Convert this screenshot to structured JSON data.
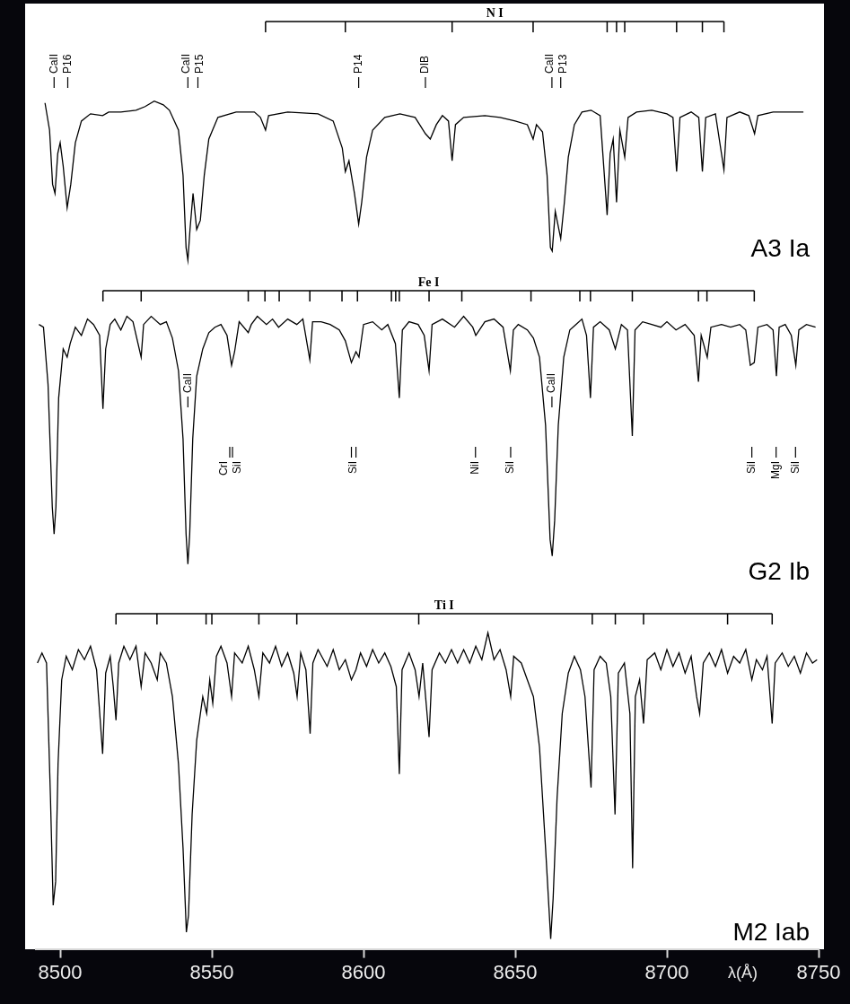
{
  "chart_data": [
    {
      "type": "line",
      "title": "A3 Ia",
      "color": "#000000",
      "grid": false,
      "tick_labels": false,
      "xlim": [
        8492,
        8750
      ],
      "ylim": [
        0.1,
        1.55
      ],
      "x": [
        8495,
        8496.5,
        8497.5,
        8498.3,
        8499.2,
        8500,
        8501,
        8502.3,
        8503.5,
        8505,
        8507,
        8510,
        8514,
        8516,
        8520,
        8525,
        8528,
        8531,
        8534,
        8536,
        8539,
        8540.5,
        8541.5,
        8542.1,
        8542.8,
        8543.8,
        8545.0,
        8546.2,
        8547.5,
        8549,
        8552,
        8558,
        8564,
        8566,
        8567.7,
        8568.7,
        8575,
        8585,
        8590,
        8593,
        8594.0,
        8595.2,
        8597,
        8598.4,
        8599.4,
        8601,
        8603,
        8607,
        8612,
        8617,
        8620.4,
        8622,
        8624,
        8626,
        8628,
        8629.2,
        8630.3,
        8633,
        8640,
        8645,
        8650,
        8654,
        8655.9,
        8657,
        8659,
        8660.5,
        8661.6,
        8662.2,
        8663.2,
        8665.0,
        8666.2,
        8667.5,
        8669.5,
        8672,
        8675,
        8678,
        8680.3,
        8681.3,
        8682.3,
        8683.4,
        8684.5,
        8686.1,
        8687.2,
        8690,
        8695,
        8700,
        8702,
        8703.2,
        8704.3,
        8708,
        8710.5,
        8711.7,
        8712.8,
        8716,
        8718.8,
        8719.8,
        8724,
        8727,
        8728.9,
        8730,
        8735,
        8740,
        8745
      ],
      "values": [
        1.0,
        0.85,
        0.55,
        0.5,
        0.72,
        0.78,
        0.65,
        0.42,
        0.55,
        0.78,
        0.9,
        0.94,
        0.93,
        0.95,
        0.95,
        0.96,
        0.98,
        1.01,
        0.99,
        0.96,
        0.85,
        0.6,
        0.2,
        0.13,
        0.3,
        0.5,
        0.3,
        0.35,
        0.6,
        0.8,
        0.92,
        0.95,
        0.95,
        0.92,
        0.85,
        0.93,
        0.95,
        0.94,
        0.9,
        0.75,
        0.62,
        0.68,
        0.5,
        0.33,
        0.45,
        0.7,
        0.85,
        0.92,
        0.94,
        0.92,
        0.83,
        0.8,
        0.88,
        0.93,
        0.9,
        0.68,
        0.88,
        0.92,
        0.93,
        0.92,
        0.9,
        0.88,
        0.8,
        0.88,
        0.84,
        0.6,
        0.2,
        0.18,
        0.4,
        0.25,
        0.45,
        0.7,
        0.88,
        0.95,
        0.96,
        0.93,
        0.38,
        0.72,
        0.8,
        0.45,
        0.85,
        0.7,
        0.92,
        0.95,
        0.96,
        0.94,
        0.92,
        0.62,
        0.92,
        0.95,
        0.92,
        0.62,
        0.92,
        0.94,
        0.63,
        0.92,
        0.95,
        0.93,
        0.83,
        0.93,
        0.95,
        0.95,
        0.95
      ],
      "line_lists": [
        {
          "label": "N I",
          "x": [
            8567.7,
            8594.0,
            8629.2,
            8655.9,
            8680.3,
            8683.4,
            8686.1,
            8703.2,
            8711.7,
            8718.8
          ]
        }
      ],
      "line_ids": [
        {
          "label": "CaII",
          "x": [
            8498.0
          ]
        },
        {
          "label": "P16",
          "x": [
            8502.5
          ]
        },
        {
          "label": "CaII",
          "x": [
            8542.1
          ]
        },
        {
          "label": "P15",
          "x": [
            8545.4
          ]
        },
        {
          "label": "P14",
          "x": [
            8598.4
          ]
        },
        {
          "label": "DIB",
          "x": [
            8620.4
          ]
        },
        {
          "label": "CaII",
          "x": [
            8662.1
          ]
        },
        {
          "label": "P13",
          "x": [
            8665.0
          ]
        }
      ]
    },
    {
      "type": "line",
      "title": "G2 Ib",
      "color": "#000000",
      "grid": false,
      "tick_labels": false,
      "xlim": [
        8492,
        8750
      ],
      "ylim": [
        0,
        1.16
      ],
      "x": [
        8493,
        8494.5,
        8496,
        8497.4,
        8498.0,
        8498.6,
        8499.5,
        8501,
        8502.3,
        8503.3,
        8505,
        8507,
        8509,
        8511,
        8513,
        8514.1,
        8515,
        8516.5,
        8518,
        8520,
        8522,
        8524,
        8526.7,
        8527.5,
        8530,
        8533,
        8535,
        8537,
        8539,
        8540.5,
        8541.5,
        8542.1,
        8542.7,
        8543.7,
        8545,
        8547,
        8549,
        8551,
        8553,
        8555,
        8556.5,
        8557.5,
        8559,
        8562,
        8563,
        8565,
        8568,
        8570,
        8572,
        8575,
        8578,
        8580,
        8582.3,
        8583.2,
        8586,
        8589,
        8592,
        8594,
        8596,
        8597.5,
        8598.5,
        8600,
        8603,
        8606,
        8608,
        8610.5,
        8611.8,
        8612.8,
        8615,
        8618,
        8620,
        8621.6,
        8622.6,
        8626,
        8630,
        8633,
        8636,
        8637,
        8640,
        8643,
        8646,
        8648.4,
        8649.4,
        8651,
        8654,
        8656,
        8658,
        8660,
        8661.5,
        8662.2,
        8663,
        8664.2,
        8666,
        8668,
        8670,
        8672,
        8673.5,
        8674.8,
        8675.8,
        8678,
        8681,
        8683,
        8685,
        8687,
        8688.6,
        8689.5,
        8692,
        8695,
        8698,
        8700,
        8703,
        8706,
        8709,
        8710.4,
        8711.3,
        8713.3,
        8714.5,
        8718,
        8721,
        8724,
        8726,
        8727.5,
        8728.8,
        8730,
        8733,
        8735,
        8736.1,
        8737,
        8739,
        8741,
        8742.5,
        8743.5,
        8746,
        8749
      ],
      "values": [
        0.97,
        0.96,
        0.75,
        0.3,
        0.2,
        0.3,
        0.7,
        0.88,
        0.85,
        0.9,
        0.96,
        0.93,
        0.99,
        0.97,
        0.93,
        0.66,
        0.88,
        0.97,
        0.99,
        0.95,
        1.0,
        0.98,
        0.85,
        0.97,
        1.0,
        0.97,
        0.98,
        0.92,
        0.8,
        0.55,
        0.2,
        0.09,
        0.2,
        0.55,
        0.78,
        0.88,
        0.94,
        0.96,
        0.97,
        0.93,
        0.82,
        0.87,
        0.98,
        0.94,
        0.97,
        1.0,
        0.97,
        0.99,
        0.96,
        0.99,
        0.97,
        0.99,
        0.84,
        0.98,
        0.98,
        0.97,
        0.95,
        0.91,
        0.83,
        0.87,
        0.85,
        0.97,
        0.98,
        0.95,
        0.97,
        0.9,
        0.7,
        0.95,
        0.98,
        0.97,
        0.93,
        0.8,
        0.97,
        0.99,
        0.96,
        1.0,
        0.96,
        0.93,
        0.98,
        0.99,
        0.96,
        0.8,
        0.95,
        0.97,
        0.95,
        0.92,
        0.85,
        0.6,
        0.18,
        0.12,
        0.25,
        0.6,
        0.85,
        0.95,
        0.97,
        0.99,
        0.93,
        0.7,
        0.96,
        0.98,
        0.95,
        0.88,
        0.97,
        0.95,
        0.56,
        0.95,
        0.98,
        0.97,
        0.96,
        0.98,
        0.95,
        0.97,
        0.93,
        0.76,
        0.93,
        0.85,
        0.96,
        0.97,
        0.96,
        0.97,
        0.95,
        0.82,
        0.83,
        0.96,
        0.97,
        0.95,
        0.78,
        0.96,
        0.97,
        0.93,
        0.82,
        0.95,
        0.97,
        0.96
      ],
      "line_lists": [
        {
          "label": "Fe I",
          "x": [
            8514.1,
            8526.7,
            8562.0,
            8567.5,
            8572.2,
            8582.3,
            8592.9,
            8598.0,
            8609.2,
            8610.6,
            8611.8,
            8621.6,
            8632.4,
            8655.2,
            8671.3,
            8674.8,
            8688.6,
            8710.4,
            8713.2,
            8728.8
          ]
        }
      ],
      "line_ids": [
        {
          "label": "CaII",
          "x": [
            8542.1
          ]
        },
        {
          "label": "CaII",
          "x": [
            8662.1
          ]
        }
      ],
      "lower_line_ids": [
        {
          "label": "CrI",
          "x": [
            8555.9
          ]
        },
        {
          "label": "SiI",
          "x": [
            8556.8
          ]
        },
        {
          "label": "SiI",
          "x": [
            8596.0,
            8597.5
          ]
        },
        {
          "label": "NiI",
          "x": [
            8636.9
          ]
        },
        {
          "label": "SiI",
          "x": [
            8648.5
          ]
        },
        {
          "label": "SiI",
          "x": [
            8728.0
          ]
        },
        {
          "label": "MgI",
          "x": [
            8736.0
          ]
        },
        {
          "label": "SiI",
          "x": [
            8742.4
          ]
        }
      ]
    },
    {
      "type": "line",
      "title": "M2 Iab",
      "color": "#000000",
      "grid": false,
      "tick_labels": "x",
      "x_label": "λ(Å)",
      "xlim": [
        8492,
        8750
      ],
      "ylim": [
        0.1,
        1.15
      ],
      "xticks": [
        8500,
        8550,
        8600,
        8650,
        8700,
        8750
      ],
      "x": [
        8492.5,
        8494,
        8495.5,
        8496.8,
        8497.7,
        8498.5,
        8499.3,
        8500.5,
        8502,
        8504,
        8506,
        8508,
        8510,
        8512,
        8514.0,
        8515,
        8516.5,
        8517.5,
        8518.4,
        8519.3,
        8521,
        8523,
        8525,
        8526.7,
        8528,
        8530,
        8532,
        8533,
        8535,
        8537,
        8539,
        8540.5,
        8541.6,
        8542.3,
        8543.5,
        8545,
        8547,
        8548.3,
        8549.3,
        8550.3,
        8551.5,
        8553,
        8555,
        8556.5,
        8557.5,
        8560,
        8562,
        8564,
        8565.5,
        8566.8,
        8569,
        8571,
        8573,
        8575,
        8577,
        8578.1,
        8579.3,
        8581,
        8582.4,
        8583.3,
        8585,
        8588,
        8590,
        8592,
        8594,
        8596,
        8597.5,
        8599,
        8601,
        8603,
        8605,
        8607,
        8609,
        8610.8,
        8611.8,
        8612.7,
        8615,
        8617,
        8618.3,
        8619.5,
        8621.6,
        8622.6,
        8625,
        8627,
        8629,
        8631,
        8633,
        8635,
        8637,
        8639,
        8641,
        8643,
        8645,
        8647,
        8648.5,
        8649.5,
        8652,
        8654,
        8656,
        8658,
        8660,
        8661.7,
        8662.5,
        8663.8,
        8665.5,
        8667.5,
        8669.5,
        8671.5,
        8673,
        8675.0,
        8676,
        8678,
        8680,
        8681.5,
        8682.9,
        8684,
        8686,
        8687.8,
        8688.7,
        8689.6,
        8691,
        8692.3,
        8693.5,
        8696,
        8698,
        8700,
        8702,
        8704,
        8706,
        8708,
        8709.8,
        8710.8,
        8712,
        8714,
        8716,
        8718,
        8720,
        8722,
        8724,
        8726,
        8728,
        8729.5,
        8731.5,
        8733,
        8734.7,
        8735.7,
        8738,
        8740,
        8742,
        8744,
        8746,
        8748,
        8749.5
      ],
      "values": [
        0.95,
        0.98,
        0.95,
        0.55,
        0.23,
        0.3,
        0.65,
        0.9,
        0.97,
        0.93,
        0.99,
        0.96,
        1.0,
        0.93,
        0.68,
        0.92,
        0.97,
        0.88,
        0.78,
        0.95,
        1.0,
        0.96,
        1.0,
        0.88,
        0.98,
        0.95,
        0.9,
        0.98,
        0.95,
        0.85,
        0.65,
        0.4,
        0.15,
        0.2,
        0.5,
        0.72,
        0.85,
        0.8,
        0.9,
        0.83,
        0.97,
        1.0,
        0.95,
        0.85,
        0.98,
        0.95,
        1.0,
        0.93,
        0.85,
        0.98,
        0.95,
        1.0,
        0.94,
        0.98,
        0.92,
        0.85,
        0.98,
        0.93,
        0.74,
        0.95,
        0.99,
        0.94,
        0.99,
        0.93,
        0.96,
        0.9,
        0.93,
        0.98,
        0.94,
        0.99,
        0.95,
        0.98,
        0.94,
        0.88,
        0.62,
        0.93,
        0.98,
        0.93,
        0.85,
        0.95,
        0.73,
        0.93,
        0.98,
        0.95,
        0.99,
        0.95,
        0.99,
        0.95,
        1.0,
        0.96,
        1.04,
        0.96,
        0.99,
        0.93,
        0.85,
        0.97,
        0.95,
        0.9,
        0.85,
        0.7,
        0.4,
        0.13,
        0.25,
        0.55,
        0.8,
        0.92,
        0.97,
        0.93,
        0.85,
        0.58,
        0.93,
        0.97,
        0.95,
        0.85,
        0.5,
        0.92,
        0.95,
        0.8,
        0.34,
        0.85,
        0.9,
        0.77,
        0.96,
        0.98,
        0.93,
        0.99,
        0.94,
        0.98,
        0.92,
        0.97,
        0.85,
        0.8,
        0.95,
        0.98,
        0.94,
        0.99,
        0.92,
        0.97,
        0.95,
        0.99,
        0.9,
        0.96,
        0.93,
        0.97,
        0.77,
        0.95,
        0.98,
        0.94,
        0.97,
        0.92,
        0.98,
        0.95,
        0.96
      ],
      "line_lists": [
        {
          "label": "Ti I",
          "x": [
            8518.4,
            8531.9,
            8548.1,
            8550.0,
            8565.5,
            8578.0,
            8618.2,
            8675.4,
            8683.0,
            8692.3,
            8720.0,
            8734.7
          ]
        }
      ]
    }
  ]
}
